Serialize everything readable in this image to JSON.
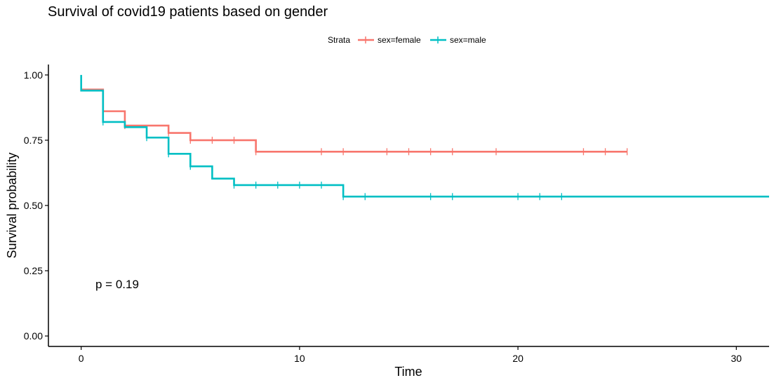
{
  "chart_data": {
    "type": "line",
    "subtype": "kaplan-meier-step",
    "title": "Survival of covid19 patients based on gender",
    "xlabel": "Time",
    "ylabel": "Survival probability",
    "xlim": [
      -1.5,
      31.5
    ],
    "ylim": [
      -0.04,
      1.04
    ],
    "x_ticks": [
      0,
      10,
      20,
      30
    ],
    "x_tick_labels": [
      "0",
      "10",
      "20",
      "30"
    ],
    "y_ticks": [
      0,
      0.25,
      0.5,
      0.75,
      1.0
    ],
    "y_tick_labels": [
      "0.00",
      "0.25",
      "0.50",
      "0.75",
      "1.00"
    ],
    "grid": false,
    "legend": {
      "title": "Strata",
      "placement": "top-center",
      "entries": [
        "sex=female",
        "sex=male"
      ]
    },
    "annotation": "p = 0.19",
    "series": [
      {
        "name": "sex=female",
        "color": "#F8766D",
        "steps": [
          [
            0,
            0.944
          ],
          [
            1,
            0.861
          ],
          [
            2,
            0.806
          ],
          [
            4,
            0.778
          ],
          [
            5,
            0.75
          ],
          [
            8,
            0.706
          ],
          [
            25,
            0.706
          ]
        ],
        "censor_times": [
          1,
          2,
          4,
          5,
          6,
          7,
          8,
          11,
          12,
          14,
          15,
          16,
          17,
          19,
          23,
          24,
          25
        ]
      },
      {
        "name": "sex=male",
        "color": "#00BFC4",
        "steps": [
          [
            0,
            1.0
          ],
          [
            0,
            0.94
          ],
          [
            1,
            0.82
          ],
          [
            2,
            0.8
          ],
          [
            3,
            0.76
          ],
          [
            4,
            0.698
          ],
          [
            5,
            0.65
          ],
          [
            6,
            0.603
          ],
          [
            7,
            0.578
          ],
          [
            12,
            0.534
          ],
          [
            31.5,
            0.534
          ]
        ],
        "censor_times": [
          1,
          3,
          4,
          5,
          7,
          8,
          9,
          10,
          11,
          12,
          13,
          16,
          17,
          20,
          21,
          22
        ]
      }
    ]
  }
}
